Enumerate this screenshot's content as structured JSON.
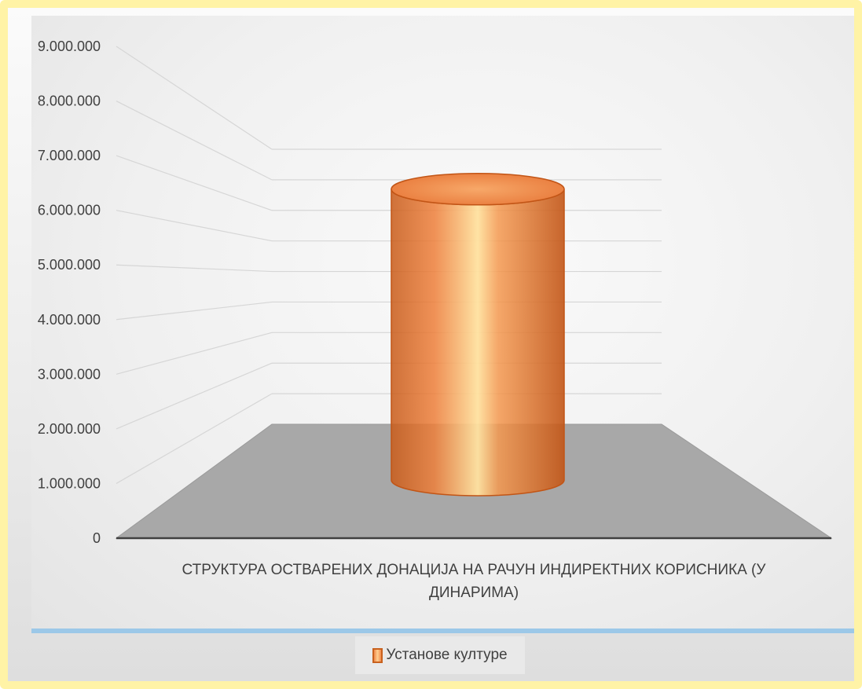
{
  "chart_data": {
    "type": "bar",
    "style": "3d-cylinder",
    "categories": [
      "СТРУКТУРА ОСТВАРЕНИХ ДОНАЦИЈА НА РАЧУН ИНДИРЕКТНИХ КОРИСНИКА (У ДИНАРИМА)"
    ],
    "category_label_lines": [
      "СТРУКТУРА ОСТВАРЕНИХ ДОНАЦИЈА НА РАЧУН ИНДИРЕКТНИХ КОРИСНИКА (У",
      "ДИНАРИМА)"
    ],
    "series": [
      {
        "name": "Установе културе",
        "values": [
          7000000
        ],
        "color": "#f0884a"
      }
    ],
    "y_ticks": [
      "0",
      "1.000.000",
      "2.000.000",
      "3.000.000",
      "4.000.000",
      "5.000.000",
      "6.000.000",
      "7.000.000",
      "8.000.000",
      "9.000.000"
    ],
    "ylim": [
      0,
      9000000
    ],
    "title": "",
    "xlabel": "",
    "ylabel": "",
    "grid": true,
    "legend_position": "bottom"
  }
}
